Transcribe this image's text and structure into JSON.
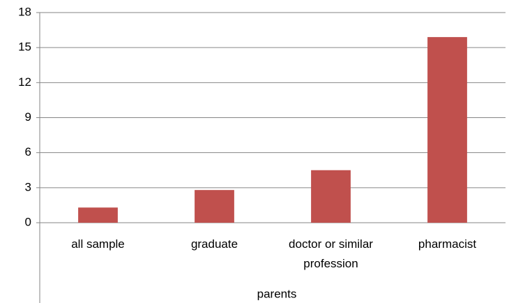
{
  "chart_data": {
    "type": "bar",
    "x_label": "parents",
    "categories": [
      "all sample",
      "graduate",
      "doctor or similar profession",
      "pharmacist"
    ],
    "values": [
      1.3,
      2.8,
      4.5,
      15.9
    ],
    "color": "#c0504d",
    "ylim": [
      0,
      18
    ],
    "yticks": [
      0,
      3,
      6,
      9,
      12,
      15,
      18
    ],
    "grid": true
  }
}
